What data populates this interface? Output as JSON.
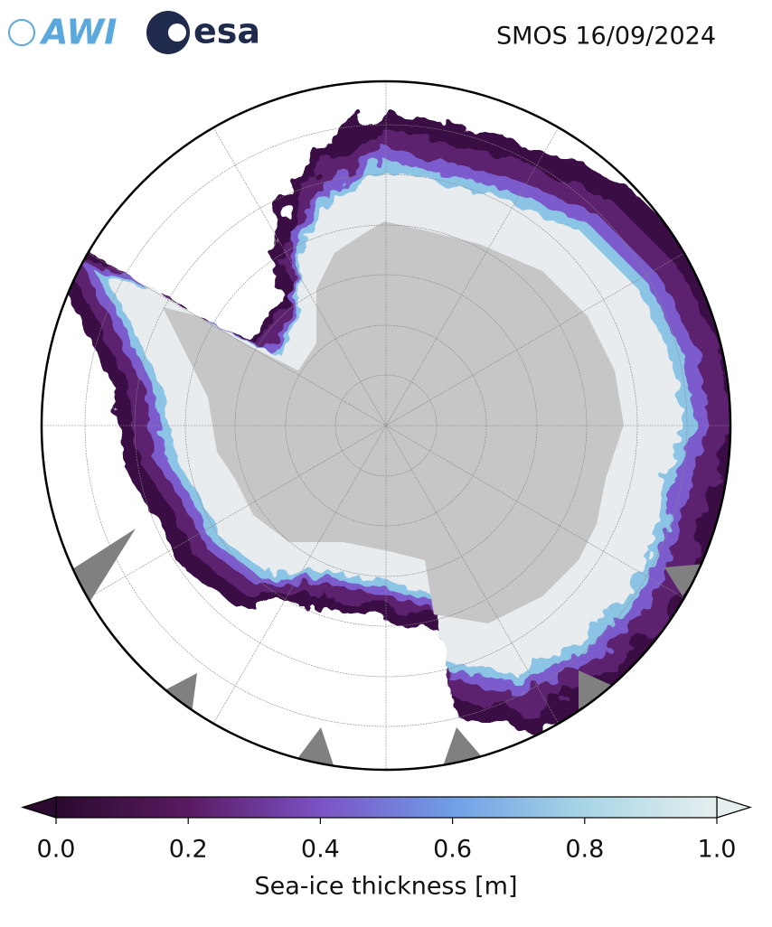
{
  "header": {
    "logo_awi": "AWI",
    "logo_esa": "esa",
    "title": "SMOS 16/09/2024"
  },
  "colorbar": {
    "label": "Sea-ice thickness [m]",
    "lim": [
      0,
      1
    ],
    "ticks": [
      {
        "value": 0,
        "label": "0.0"
      },
      {
        "value": 0.2,
        "label": "0.2"
      },
      {
        "value": 0.4,
        "label": "0.4"
      },
      {
        "value": 0.6,
        "label": "0.6"
      },
      {
        "value": 0.8,
        "label": "0.8"
      },
      {
        "value": 1,
        "label": "1.0"
      }
    ],
    "colors": [
      "#2a0a2e",
      "#5a1a62",
      "#7b52c4",
      "#6f9fe6",
      "#a8d6e6",
      "#e6efef"
    ]
  }
}
